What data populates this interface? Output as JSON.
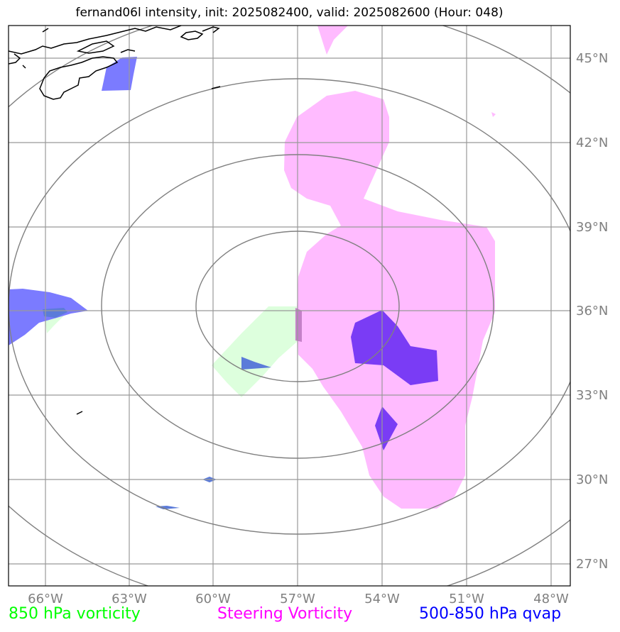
{
  "title": "fernand06l intensity, init: 2025082400, valid: 2025082600 (Hour: 048)",
  "legend": [
    {
      "label": "850 hPa vorticity",
      "color": "#00ff00"
    },
    {
      "label": "Steering Vorticity",
      "color": "#ff00ff"
    },
    {
      "label": "500-850 hPa qvap",
      "color": "#0000ff"
    }
  ],
  "lon_labels": [
    "66°W",
    "63°W",
    "60°W",
    "57°W",
    "54°W",
    "51°W",
    "48°W"
  ],
  "lat_labels": [
    "45°N",
    "42°N",
    "39°N",
    "36°N",
    "33°N",
    "30°N",
    "27°N"
  ],
  "fill_colors": {
    "steering_vorticity": "#ffbbff",
    "vorticity_850": "#ddffdd",
    "qvap": "#7b7bff",
    "qvap_dark": "#7a3cf5",
    "qvap_mixed": "#5b7bd9"
  },
  "grid_color": "#999999",
  "ring_color": "#808080",
  "coastline_color": "#000000"
}
